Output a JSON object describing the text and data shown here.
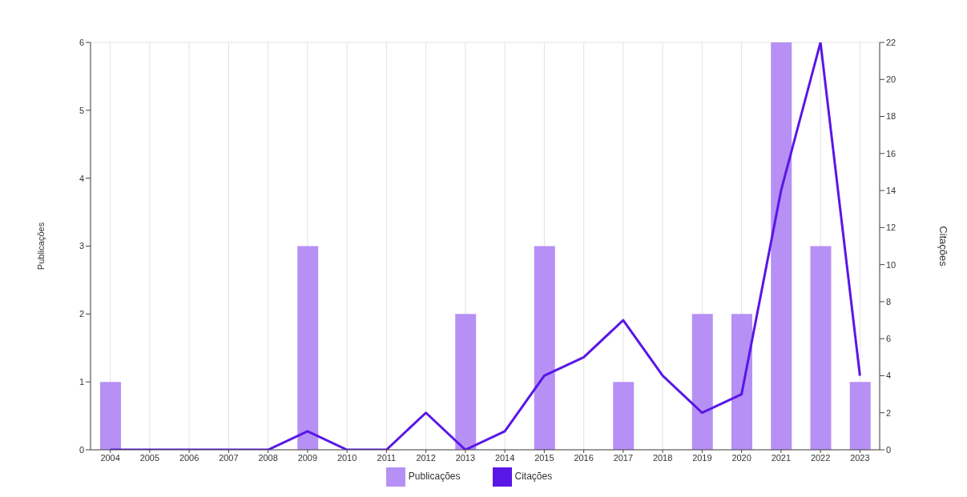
{
  "chart_data": {
    "type": "bar",
    "categories": [
      "2004",
      "2005",
      "2006",
      "2007",
      "2008",
      "2009",
      "2010",
      "2011",
      "2012",
      "2013",
      "2014",
      "2015",
      "2016",
      "2017",
      "2018",
      "2019",
      "2020",
      "2021",
      "2022",
      "2023"
    ],
    "series": [
      {
        "name": "Publicações",
        "color": "#b690f5",
        "values": [
          1,
          0,
          0,
          0,
          0,
          3,
          0,
          0,
          0,
          2,
          0,
          3,
          0,
          1,
          0,
          2,
          2,
          6,
          3,
          1
        ]
      },
      {
        "name": "Citações",
        "type": "line",
        "axis": "y2",
        "color": "#5a16e6",
        "values": [
          0,
          0,
          0,
          0,
          0,
          1,
          0,
          0,
          2,
          0,
          1,
          4,
          5,
          7,
          4,
          2,
          3,
          14,
          22,
          4
        ]
      }
    ],
    "ylabel": "Publicações",
    "y2label": "Citações",
    "ylim": [
      0,
      6
    ],
    "yticks": [
      0,
      1,
      2,
      3,
      4,
      5,
      6
    ],
    "y2lim": [
      0,
      22
    ],
    "y2ticks": [
      0,
      2,
      4,
      6,
      8,
      10,
      12,
      14,
      16,
      18,
      20,
      22
    ],
    "grid": true,
    "legend": "bottom",
    "marker": "none"
  }
}
